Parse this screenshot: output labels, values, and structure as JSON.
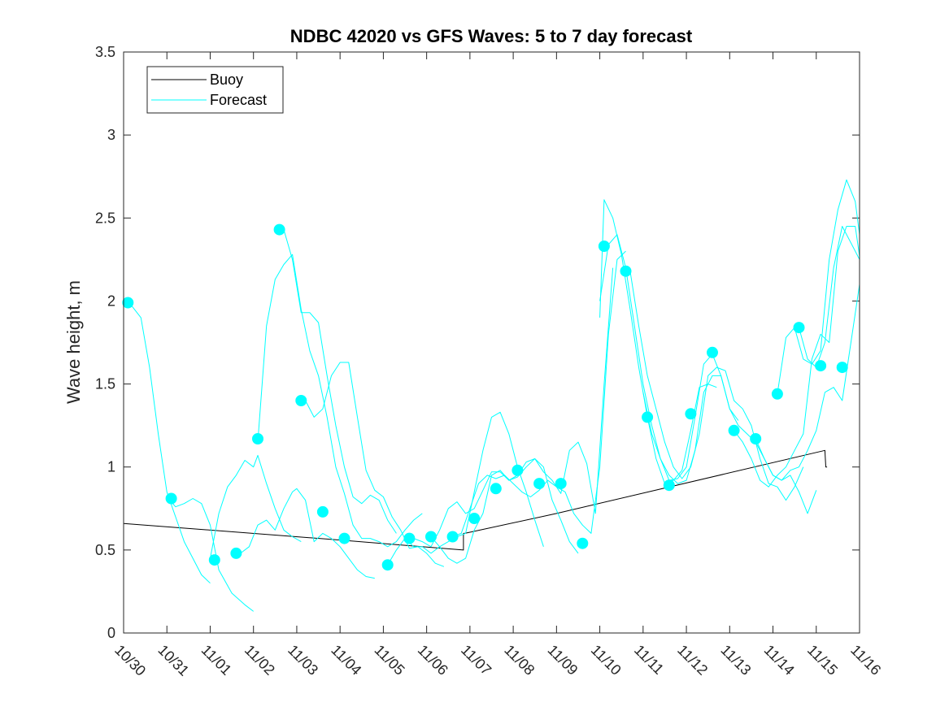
{
  "chart_data": {
    "type": "line",
    "title": "NDBC 42020 vs GFS Waves: 5 to 7 day forecast",
    "xlabel": "",
    "ylabel": "Wave height, m",
    "xlim": [
      0,
      17
    ],
    "ylim": [
      0,
      3.5
    ],
    "yticks": [
      0,
      0.5,
      1,
      1.5,
      2,
      2.5,
      3,
      3.5
    ],
    "ytick_labels": [
      "0",
      "0.5",
      "1",
      "1.5",
      "2",
      "2.5",
      "3",
      "3.5"
    ],
    "xticks": [
      0,
      1,
      2,
      3,
      4,
      5,
      6,
      7,
      8,
      9,
      10,
      11,
      12,
      13,
      14,
      15,
      16,
      17
    ],
    "xtick_labels": [
      "10/30",
      "10/31",
      "11/01",
      "11/02",
      "11/03",
      "11/04",
      "11/05",
      "11/06",
      "11/07",
      "11/08",
      "11/09",
      "11/10",
      "11/11",
      "11/12",
      "11/13",
      "11/14",
      "11/15",
      "11/16"
    ],
    "legend": {
      "position": "top-left",
      "entries": [
        {
          "label": "Buoy",
          "color": "#000000"
        },
        {
          "label": "Forecast",
          "color": "#00ffff"
        }
      ]
    },
    "series": [
      {
        "name": "Buoy",
        "color": "#000000",
        "x": [
          0,
          5.0,
          7.85,
          7.85,
          7.88,
          10.0,
          16.2,
          16.22,
          16.25
        ],
        "y": [
          0.66,
          0.56,
          0.5,
          0.6,
          0.6,
          0.72,
          1.1,
          1.0,
          1.0
        ]
      },
      {
        "name": "Forecast",
        "color": "#00ffff",
        "x": [
          0.1,
          0.4,
          0.6,
          0.8,
          1.0,
          1.2,
          1.4,
          1.6,
          1.8,
          2.0
        ],
        "y": [
          2.0,
          1.9,
          1.6,
          1.2,
          0.85,
          0.7,
          0.55,
          0.45,
          0.35,
          0.3
        ]
      },
      {
        "name": "Forecast",
        "color": "#00ffff",
        "x": [
          1.0,
          1.2,
          1.4,
          1.6,
          1.8,
          2.0,
          2.2,
          2.5,
          2.8,
          3.0
        ],
        "y": [
          0.82,
          0.76,
          0.78,
          0.81,
          0.78,
          0.65,
          0.38,
          0.24,
          0.17,
          0.13
        ]
      },
      {
        "name": "Forecast",
        "color": "#00ffff",
        "x": [
          2.0,
          2.2,
          2.4,
          2.6,
          2.8,
          3.0,
          3.1,
          3.3,
          3.5,
          3.7,
          3.9,
          4.1
        ],
        "y": [
          0.45,
          0.72,
          0.88,
          0.95,
          1.04,
          1.0,
          1.07,
          0.9,
          0.75,
          0.62,
          0.58,
          0.55
        ]
      },
      {
        "name": "Forecast",
        "color": "#00ffff",
        "x": [
          2.7,
          2.9,
          3.1,
          3.3,
          3.5,
          3.7,
          3.9,
          4.0,
          4.2,
          4.4,
          4.6,
          4.8,
          5.0,
          5.2,
          5.4,
          5.6,
          5.8
        ],
        "y": [
          0.48,
          0.52,
          0.65,
          0.68,
          0.62,
          0.75,
          0.85,
          0.87,
          0.8,
          0.55,
          0.6,
          0.57,
          0.52,
          0.45,
          0.38,
          0.34,
          0.33
        ]
      },
      {
        "name": "Forecast",
        "color": "#00ffff",
        "x": [
          3.1,
          3.3,
          3.5,
          3.7,
          3.9,
          4.1,
          4.3,
          4.5,
          4.7,
          4.9,
          5.1,
          5.3,
          5.5,
          5.7,
          5.9,
          6.1,
          6.3,
          6.5,
          6.7,
          6.9
        ],
        "y": [
          1.15,
          1.85,
          2.13,
          2.22,
          2.28,
          1.95,
          1.7,
          1.55,
          1.3,
          1.0,
          0.84,
          0.65,
          0.57,
          0.57,
          0.55,
          0.52,
          0.55,
          0.62,
          0.68,
          0.72
        ]
      },
      {
        "name": "Forecast",
        "color": "#00ffff",
        "x": [
          3.7,
          3.9,
          4.1,
          4.3,
          4.5,
          4.7,
          4.9,
          5.1,
          5.3,
          5.5,
          5.7,
          5.9,
          6.1,
          6.3
        ],
        "y": [
          2.43,
          2.25,
          1.93,
          1.93,
          1.87,
          1.55,
          1.25,
          1.0,
          0.82,
          0.78,
          0.83,
          0.8,
          0.68,
          0.6
        ]
      },
      {
        "name": "Forecast",
        "color": "#00ffff",
        "x": [
          4.2,
          4.4,
          4.6,
          4.8,
          5.0,
          5.2,
          5.4,
          5.6,
          5.8,
          6.0,
          6.2,
          6.4,
          6.6,
          6.8,
          7.0,
          7.2,
          7.4
        ],
        "y": [
          1.4,
          1.3,
          1.35,
          1.55,
          1.63,
          1.63,
          1.3,
          0.98,
          0.86,
          0.82,
          0.7,
          0.62,
          0.51,
          0.52,
          0.48,
          0.42,
          0.4
        ]
      },
      {
        "name": "Forecast",
        "color": "#00ffff",
        "x": [
          6.1,
          6.3,
          6.5,
          6.7,
          6.9,
          7.1,
          7.3,
          7.5,
          7.7,
          7.9,
          8.1,
          8.3,
          8.5,
          8.7,
          8.9,
          9.1,
          9.3,
          9.5,
          9.7
        ],
        "y": [
          0.41,
          0.5,
          0.57,
          0.52,
          0.52,
          0.48,
          0.52,
          0.55,
          0.58,
          0.6,
          0.85,
          1.1,
          1.3,
          1.33,
          1.2,
          1.0,
          0.85,
          0.68,
          0.52
        ]
      },
      {
        "name": "Forecast",
        "color": "#00ffff",
        "x": [
          6.7,
          6.9,
          7.1,
          7.3,
          7.5,
          7.7,
          7.9,
          8.1,
          8.3,
          8.5,
          8.7,
          8.9,
          9.1,
          9.3,
          9.5,
          9.7,
          9.9,
          10.1,
          10.3,
          10.5
        ],
        "y": [
          0.57,
          0.55,
          0.52,
          0.62,
          0.75,
          0.79,
          0.72,
          0.75,
          0.86,
          0.97,
          0.97,
          0.92,
          0.94,
          1.0,
          1.05,
          1.0,
          0.8,
          0.68,
          0.55,
          0.48
        ]
      },
      {
        "name": "Forecast",
        "color": "#00ffff",
        "x": [
          7.1,
          7.3,
          7.5,
          7.7,
          7.9,
          8.1,
          8.3,
          8.5,
          8.7,
          8.9,
          9.1,
          9.3,
          9.5,
          9.7,
          9.9,
          10.1,
          10.3,
          10.5,
          10.7,
          10.9,
          11.1,
          11.3
        ],
        "y": [
          0.58,
          0.52,
          0.45,
          0.42,
          0.45,
          0.62,
          0.72,
          0.95,
          0.98,
          0.92,
          0.95,
          1.03,
          1.05,
          0.97,
          0.92,
          0.84,
          1.1,
          1.15,
          1.02,
          0.72,
          1.5,
          2.2
        ]
      },
      {
        "name": "Forecast",
        "color": "#00ffff",
        "x": [
          7.6,
          7.8,
          8.0,
          8.2,
          8.4,
          8.6,
          8.8,
          9.0,
          9.2,
          9.4,
          9.6,
          9.8,
          10.0,
          10.2,
          10.4,
          10.6,
          10.8,
          11.0,
          11.2,
          11.4,
          11.6
        ],
        "y": [
          0.58,
          0.6,
          0.75,
          0.9,
          0.95,
          0.93,
          0.95,
          0.9,
          0.85,
          0.82,
          0.86,
          0.92,
          0.88,
          0.85,
          0.72,
          0.65,
          0.6,
          1.0,
          1.8,
          2.25,
          2.3
        ]
      },
      {
        "name": "Forecast",
        "color": "#00ffff",
        "x": [
          11.0,
          11.1,
          11.3,
          11.5,
          11.7,
          11.9,
          12.1,
          12.3,
          12.5,
          12.7,
          12.9,
          13.1,
          13.3,
          13.5,
          13.7
        ],
        "y": [
          1.9,
          2.61,
          2.5,
          2.28,
          1.95,
          1.6,
          1.3,
          1.05,
          0.9,
          0.92,
          0.98,
          1.22,
          1.48,
          1.5,
          1.48
        ]
      },
      {
        "name": "Forecast",
        "color": "#00ffff",
        "x": [
          11.0,
          11.2,
          11.4,
          11.6,
          11.8,
          12.0,
          12.2,
          12.4,
          12.6,
          12.8,
          13.0,
          13.2,
          13.4,
          13.6,
          13.8,
          14.0,
          14.2
        ],
        "y": [
          2.0,
          2.34,
          2.4,
          2.2,
          1.85,
          1.5,
          1.25,
          1.05,
          0.92,
          0.93,
          1.0,
          1.3,
          1.62,
          1.68,
          1.55,
          1.35,
          1.28
        ]
      },
      {
        "name": "Forecast",
        "color": "#00ffff",
        "x": [
          11.7,
          11.9,
          12.1,
          12.3,
          12.5,
          12.7,
          12.9,
          13.1,
          13.3,
          13.5,
          13.7,
          13.9,
          14.1,
          14.3,
          14.5,
          14.7,
          14.9,
          15.1,
          15.3,
          15.5,
          15.7
        ],
        "y": [
          2.18,
          1.85,
          1.55,
          1.35,
          1.15,
          1.0,
          0.93,
          1.0,
          1.2,
          1.55,
          1.6,
          1.58,
          1.4,
          1.35,
          1.25,
          1.05,
          0.9,
          0.88,
          0.8,
          0.88,
          1.0
        ]
      },
      {
        "name": "Forecast",
        "color": "#00ffff",
        "x": [
          12.0,
          12.2,
          12.4,
          12.6,
          12.8,
          13.0,
          13.2,
          13.4,
          13.6,
          13.8,
          14.0,
          14.2,
          14.4,
          14.6,
          14.8,
          15.0,
          15.2,
          15.4,
          15.6,
          15.8,
          16.0
        ],
        "y": [
          1.45,
          1.2,
          1.05,
          0.95,
          0.9,
          0.92,
          1.1,
          1.45,
          1.55,
          1.55,
          1.35,
          1.25,
          1.2,
          1.15,
          1.05,
          0.95,
          0.92,
          0.95,
          0.85,
          0.72,
          0.86
        ]
      },
      {
        "name": "Forecast",
        "color": "#00ffff",
        "x": [
          14.1,
          14.3,
          14.5,
          14.7,
          14.9,
          15.1,
          15.3,
          15.5,
          15.7,
          15.9,
          16.1,
          16.3,
          16.5,
          16.7,
          16.9,
          17.0
        ],
        "y": [
          1.22,
          1.15,
          1.05,
          0.92,
          0.88,
          0.95,
          1.0,
          1.1,
          1.2,
          1.65,
          1.8,
          1.75,
          2.3,
          2.45,
          2.45,
          2.27
        ]
      },
      {
        "name": "Forecast",
        "color": "#00ffff",
        "x": [
          14.6,
          14.8,
          15.0,
          15.2,
          15.4,
          15.6,
          15.8,
          16.0,
          16.2,
          16.4,
          16.6,
          16.8,
          17.0
        ],
        "y": [
          1.17,
          1.05,
          0.95,
          0.92,
          0.98,
          1.0,
          1.1,
          1.22,
          1.45,
          1.48,
          1.4,
          1.75,
          2.1
        ]
      },
      {
        "name": "Forecast",
        "color": "#00ffff",
        "x": [
          15.1,
          15.3,
          15.5,
          15.7,
          15.9,
          16.1,
          16.3,
          16.5,
          16.7,
          16.9,
          17.0
        ],
        "y": [
          1.44,
          1.78,
          1.84,
          1.65,
          1.62,
          1.7,
          2.25,
          2.55,
          2.73,
          2.6,
          2.4
        ]
      },
      {
        "name": "Forecast",
        "color": "#00ffff",
        "x": [
          15.6,
          15.8,
          16.0,
          16.2,
          16.4,
          16.6,
          16.8,
          17.0
        ],
        "y": [
          1.84,
          1.65,
          1.6,
          1.75,
          2.2,
          2.45,
          2.35,
          2.25
        ]
      }
    ],
    "markers": {
      "name": "Forecast start",
      "color": "#00ffff",
      "x": [
        0.1,
        1.1,
        2.1,
        2.6,
        3.1,
        3.6,
        4.1,
        4.6,
        5.1,
        6.1,
        6.6,
        7.1,
        7.6,
        8.1,
        8.6,
        9.1,
        9.6,
        10.1,
        10.6,
        11.1,
        11.6,
        12.1,
        12.6,
        13.1,
        13.6,
        14.1,
        14.6,
        15.1,
        15.6,
        16.1,
        16.6
      ],
      "y": [
        1.99,
        0.81,
        0.44,
        0.48,
        1.17,
        2.43,
        1.4,
        0.73,
        0.57,
        0.41,
        0.57,
        0.58,
        0.58,
        0.69,
        0.87,
        0.98,
        0.9,
        0.9,
        0.54,
        2.33,
        2.18,
        1.3,
        0.89,
        1.32,
        1.69,
        1.22,
        1.17,
        1.44,
        1.84,
        1.61,
        1.6
      ]
    }
  }
}
